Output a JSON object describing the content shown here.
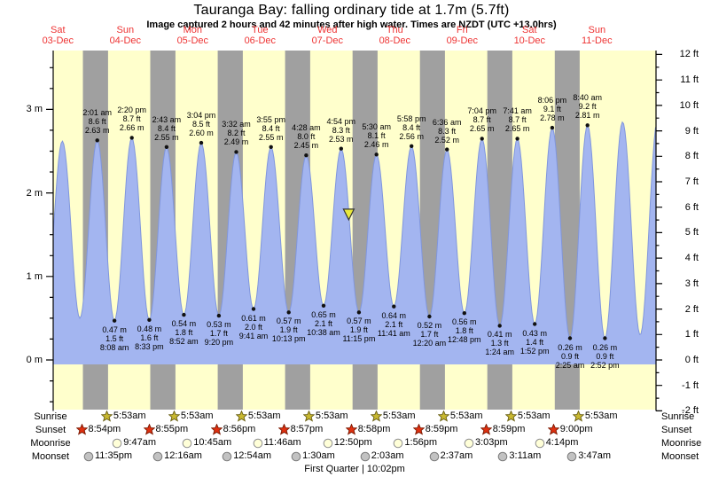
{
  "title": "Tauranga Bay: falling  ordinary tide at 1.7m (5.7ft)",
  "subtitle": "Image captured 2 hours and 42 minutes after high water. Times are NZDT (UTC +13.0hrs)",
  "day_labels": [
    {
      "dow": "Sat",
      "date": "03-Dec"
    },
    {
      "dow": "Sun",
      "date": "04-Dec"
    },
    {
      "dow": "Mon",
      "date": "05-Dec"
    },
    {
      "dow": "Tue",
      "date": "06-Dec"
    },
    {
      "dow": "Wed",
      "date": "07-Dec"
    },
    {
      "dow": "Thu",
      "date": "08-Dec"
    },
    {
      "dow": "Fri",
      "date": "09-Dec"
    },
    {
      "dow": "Sat",
      "date": "10-Dec"
    },
    {
      "dow": "Sun",
      "date": "11-Dec"
    }
  ],
  "chart_data": {
    "type": "area",
    "title": "Tauranga Bay tide heights, 03-Dec to 11-Dec",
    "ylabel_left": "meters",
    "ylabel_right": "feet",
    "ylim_m": [
      -0.6,
      3.7
    ],
    "meter_tick_labels": [
      {
        "value": 3,
        "label": "3 m"
      },
      {
        "value": 2,
        "label": "2 m"
      },
      {
        "value": 1,
        "label": "1 m"
      },
      {
        "value": 0,
        "label": "0 m"
      }
    ],
    "feet_tick_labels": [
      {
        "value": 12,
        "label": "12 ft"
      },
      {
        "value": 11,
        "label": "11 ft"
      },
      {
        "value": 10,
        "label": "10 ft"
      },
      {
        "value": 9,
        "label": "9 ft"
      },
      {
        "value": 8,
        "label": "8 ft"
      },
      {
        "value": 7,
        "label": "7 ft"
      },
      {
        "value": 6,
        "label": "6 ft"
      },
      {
        "value": 5,
        "label": "5 ft"
      },
      {
        "value": 4,
        "label": "4 ft"
      },
      {
        "value": 3,
        "label": "3 ft"
      },
      {
        "value": 2,
        "label": "2 ft"
      },
      {
        "value": 1,
        "label": "1 ft"
      },
      {
        "value": 0,
        "label": "0 ft"
      },
      {
        "value": -1,
        "label": "-1 ft"
      },
      {
        "value": -2,
        "label": "-2 ft"
      }
    ],
    "high_tides": [
      {
        "day": 1,
        "time": "2:01 am",
        "ft_label": "8.6 ft",
        "m_label": "2.63 m",
        "height_m": 2.63
      },
      {
        "day": 1,
        "time": "2:20 pm",
        "ft_label": "8.7 ft",
        "m_label": "2.66 m",
        "height_m": 2.66
      },
      {
        "day": 2,
        "time": "2:43 am",
        "ft_label": "8.4 ft",
        "m_label": "2.55 m",
        "height_m": 2.55
      },
      {
        "day": 2,
        "time": "3:04 pm",
        "ft_label": "8.5 ft",
        "m_label": "2.60 m",
        "height_m": 2.6
      },
      {
        "day": 3,
        "time": "3:32 am",
        "ft_label": "8.2 ft",
        "m_label": "2.49 m",
        "height_m": 2.49
      },
      {
        "day": 3,
        "time": "3:55 pm",
        "ft_label": "8.4 ft",
        "m_label": "2.55 m",
        "height_m": 2.55
      },
      {
        "day": 4,
        "time": "4:28 am",
        "ft_label": "8.0 ft",
        "m_label": "2.45 m",
        "height_m": 2.45
      },
      {
        "day": 4,
        "time": "4:54 pm",
        "ft_label": "8.3 ft",
        "m_label": "2.53 m",
        "height_m": 2.53
      },
      {
        "day": 5,
        "time": "5:30 am",
        "ft_label": "8.1 ft",
        "m_label": "2.46 m",
        "height_m": 2.46
      },
      {
        "day": 5,
        "time": "5:58 pm",
        "ft_label": "8.4 ft",
        "m_label": "2.56 m",
        "height_m": 2.56
      },
      {
        "day": 6,
        "time": "6:36 am",
        "ft_label": "8.3 ft",
        "m_label": "2.52 m",
        "height_m": 2.52
      },
      {
        "day": 6,
        "time": "7:04 pm",
        "ft_label": "8.7 ft",
        "m_label": "2.65 m",
        "height_m": 2.65
      },
      {
        "day": 7,
        "time": "7:41 am",
        "ft_label": "8.7 ft",
        "m_label": "2.65 m",
        "height_m": 2.65
      },
      {
        "day": 7,
        "time": "8:06 pm",
        "ft_label": "9.1 ft",
        "m_label": "2.78 m",
        "height_m": 2.78
      },
      {
        "day": 8,
        "time": "8:40 am",
        "ft_label": "9.2 ft",
        "m_label": "2.81 m",
        "height_m": 2.81
      }
    ],
    "low_tides": [
      {
        "day": 1,
        "time": "8:08 am",
        "ft_label": "1.5 ft",
        "m_label": "0.47 m",
        "height_m": 0.47
      },
      {
        "day": 1,
        "time": "8:33 pm",
        "ft_label": "1.6 ft",
        "m_label": "0.48 m",
        "height_m": 0.48
      },
      {
        "day": 2,
        "time": "8:52 am",
        "ft_label": "1.8 ft",
        "m_label": "0.54 m",
        "height_m": 0.54
      },
      {
        "day": 2,
        "time": "9:20 pm",
        "ft_label": "1.7 ft",
        "m_label": "0.53 m",
        "height_m": 0.53
      },
      {
        "day": 3,
        "time": "9:41 am",
        "ft_label": "2.0 ft",
        "m_label": "0.61 m",
        "height_m": 0.61
      },
      {
        "day": 3,
        "time": "10:13 pm",
        "ft_label": "1.9 ft",
        "m_label": "0.57 m",
        "height_m": 0.57
      },
      {
        "day": 4,
        "time": "10:38 am",
        "ft_label": "2.1 ft",
        "m_label": "0.65 m",
        "height_m": 0.65
      },
      {
        "day": 4,
        "time": "11:15 pm",
        "ft_label": "1.9 ft",
        "m_label": "0.57 m",
        "height_m": 0.57
      },
      {
        "day": 5,
        "time": "11:41 am",
        "ft_label": "2.1 ft",
        "m_label": "0.64 m",
        "height_m": 0.64
      },
      {
        "day": 6,
        "time": "12:20 am",
        "ft_label": "1.7 ft",
        "m_label": "0.52 m",
        "height_m": 0.52
      },
      {
        "day": 6,
        "time": "12:48 pm",
        "ft_label": "1.8 ft",
        "m_label": "0.56 m",
        "height_m": 0.56
      },
      {
        "day": 7,
        "time": "1:24 am",
        "ft_label": "1.3 ft",
        "m_label": "0.41 m",
        "height_m": 0.41
      },
      {
        "day": 7,
        "time": "1:52 pm",
        "ft_label": "1.4 ft",
        "m_label": "0.43 m",
        "height_m": 0.43
      },
      {
        "day": 8,
        "time": "2:25 am",
        "ft_label": "0.9 ft",
        "m_label": "0.26 m",
        "height_m": 0.26
      },
      {
        "day": 8,
        "time": "2:52 pm",
        "ft_label": "0.9 ft",
        "m_label": "0.26 m",
        "height_m": 0.26
      }
    ],
    "curve_edge_estimates": [
      {
        "day": 0,
        "time": "7:20 am",
        "height_m": 0.5
      },
      {
        "day": 0,
        "time": "1:35 pm",
        "height_m": 2.62
      },
      {
        "day": 0,
        "time": "7:50 pm",
        "height_m": 0.5
      },
      {
        "day": 8,
        "time": "9:10 pm",
        "height_m": 2.85
      },
      {
        "day": 9,
        "time": "3:25 am",
        "height_m": 0.3
      },
      {
        "day": 9,
        "time": "9:45 am",
        "height_m": 2.9
      }
    ],
    "current_marker": {
      "day": 4,
      "time": "7:36 pm",
      "height_m": 1.7
    }
  },
  "astro": {
    "row_labels": {
      "sunrise": "Sunrise",
      "sunset": "Sunset",
      "moonrise": "Moonrise",
      "moonset": "Moonset"
    },
    "sunrise": [
      {
        "day": 1,
        "time": "5:53am"
      },
      {
        "day": 2,
        "time": "5:53am"
      },
      {
        "day": 3,
        "time": "5:53am"
      },
      {
        "day": 4,
        "time": "5:53am"
      },
      {
        "day": 5,
        "time": "5:53am"
      },
      {
        "day": 6,
        "time": "5:53am"
      },
      {
        "day": 7,
        "time": "5:53am"
      },
      {
        "day": 8,
        "time": "5:53am"
      }
    ],
    "sunset": [
      {
        "day": 0,
        "time": "8:54pm"
      },
      {
        "day": 1,
        "time": "8:55pm"
      },
      {
        "day": 2,
        "time": "8:56pm"
      },
      {
        "day": 3,
        "time": "8:57pm"
      },
      {
        "day": 4,
        "time": "8:58pm"
      },
      {
        "day": 5,
        "time": "8:59pm"
      },
      {
        "day": 6,
        "time": "8:59pm"
      },
      {
        "day": 7,
        "time": "9:00pm"
      }
    ],
    "moonrise": [
      {
        "day": 1,
        "time": "9:47am"
      },
      {
        "day": 2,
        "time": "10:45am"
      },
      {
        "day": 3,
        "time": "11:46am"
      },
      {
        "day": 4,
        "time": "12:50pm"
      },
      {
        "day": 5,
        "time": "1:56pm"
      },
      {
        "day": 6,
        "time": "3:03pm"
      },
      {
        "day": 7,
        "time": "4:14pm"
      }
    ],
    "moonset": [
      {
        "day": 0,
        "time": "11:35pm"
      },
      {
        "day": 2,
        "time": "12:16am"
      },
      {
        "day": 3,
        "time": "12:54am"
      },
      {
        "day": 4,
        "time": "1:30am"
      },
      {
        "day": 5,
        "time": "2:03am"
      },
      {
        "day": 6,
        "time": "2:37am"
      },
      {
        "day": 7,
        "time": "3:11am"
      },
      {
        "day": 8,
        "time": "3:47am"
      }
    ],
    "footer": "First Quarter | 10:02pm"
  },
  "colors": {
    "day_background": "#ffffcc",
    "night_band": "#a0a0a0",
    "tide_fill": "#a3b5f0",
    "tide_edge": "#8096dd",
    "date_red": "#ee3333",
    "marker_fill": "#e9e93c",
    "sunrise_icon": "#c8b830",
    "sunrise_icon_stroke": "#6a6014",
    "sunset_icon": "#e03010",
    "sunset_icon_stroke": "#7a1800",
    "moonrise_icon": "#ffffd8",
    "moonrise_icon_stroke": "#909090",
    "moonset_icon": "#c2c2c2",
    "moonset_icon_stroke": "#7a7a7a"
  }
}
